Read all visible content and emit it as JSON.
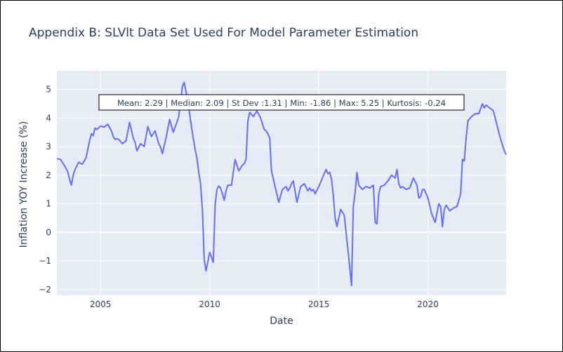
{
  "chart_data": {
    "type": "line",
    "title": "Appendix B: SLVlt Data Set Used For Model Parameter Estimation",
    "xlabel": "Date",
    "ylabel": "Inflation YOY Increase (%)",
    "xlim": [
      "2003-01",
      "2023-08"
    ],
    "ylim": [
      -2.2,
      5.65
    ],
    "x_ticks": [
      {
        "value": "2005-01",
        "label": "2005"
      },
      {
        "value": "2010-01",
        "label": "2010"
      },
      {
        "value": "2015-01",
        "label": "2015"
      },
      {
        "value": "2020-01",
        "label": "2020"
      }
    ],
    "y_ticks": [
      {
        "value": -2,
        "label": "−2"
      },
      {
        "value": -1,
        "label": "−1"
      },
      {
        "value": 0,
        "label": "0"
      },
      {
        "value": 1,
        "label": "1"
      },
      {
        "value": 2,
        "label": "2"
      },
      {
        "value": 3,
        "label": "3"
      },
      {
        "value": 4,
        "label": "4"
      },
      {
        "value": 5,
        "label": "5"
      }
    ],
    "grid": true,
    "line_color": "#636efa",
    "plot_bgcolor": "#e5ecf6",
    "annotation": "Mean: 2.29 | Median: 2.09 | St Dev :1.31 | Min: -1.86 | Max: 5.25 | Kurtosis: -0.24",
    "series": [
      {
        "x": [
          "2003-01",
          "2003-03",
          "2003-05",
          "2003-07",
          "2003-08",
          "2003-09",
          "2003-10",
          "2003-11",
          "2004-01",
          "2004-03",
          "2004-05",
          "2004-07",
          "2004-08",
          "2004-09",
          "2004-10",
          "2004-11",
          "2005-01",
          "2005-03",
          "2005-05",
          "2005-07",
          "2005-08",
          "2005-09",
          "2005-10",
          "2005-11",
          "2006-01",
          "2006-03",
          "2006-05",
          "2006-07",
          "2006-08",
          "2006-09",
          "2006-11",
          "2007-01",
          "2007-03",
          "2007-05",
          "2007-07",
          "2007-09",
          "2007-10",
          "2007-11",
          "2008-01",
          "2008-03",
          "2008-05",
          "2008-07",
          "2008-08",
          "2008-09",
          "2008-10",
          "2008-11",
          "2009-01",
          "2009-03",
          "2009-04",
          "2009-05",
          "2009-06",
          "2009-07",
          "2009-08",
          "2009-09",
          "2009-10",
          "2009-11",
          "2010-01",
          "2010-03",
          "2010-04",
          "2010-05",
          "2010-06",
          "2010-07",
          "2010-08",
          "2010-09",
          "2010-10",
          "2010-11",
          "2011-01",
          "2011-03",
          "2011-05",
          "2011-07",
          "2011-08",
          "2011-09",
          "2011-10",
          "2011-11",
          "2012-01",
          "2012-03",
          "2012-05",
          "2012-07",
          "2012-08",
          "2012-09",
          "2012-10",
          "2012-11",
          "2013-01",
          "2013-03",
          "2013-05",
          "2013-07",
          "2013-08",
          "2013-09",
          "2013-10",
          "2013-11",
          "2014-01",
          "2014-03",
          "2014-05",
          "2014-07",
          "2014-08",
          "2014-09",
          "2014-10",
          "2014-11",
          "2015-01",
          "2015-03",
          "2015-05",
          "2015-06",
          "2015-07",
          "2015-08",
          "2015-09",
          "2015-10",
          "2015-11",
          "2016-01",
          "2016-03",
          "2016-05",
          "2016-07",
          "2016-08",
          "2016-09",
          "2016-10",
          "2016-11",
          "2017-01",
          "2017-03",
          "2017-05",
          "2017-07",
          "2017-08",
          "2017-09",
          "2017-10",
          "2017-11",
          "2018-01",
          "2018-03",
          "2018-05",
          "2018-07",
          "2018-08",
          "2018-09",
          "2018-10",
          "2018-11",
          "2019-01",
          "2019-03",
          "2019-05",
          "2019-07",
          "2019-08",
          "2019-09",
          "2019-10",
          "2019-11",
          "2020-01",
          "2020-03",
          "2020-05",
          "2020-07",
          "2020-08",
          "2020-09",
          "2020-10",
          "2020-11",
          "2021-01",
          "2021-03",
          "2021-05",
          "2021-07",
          "2021-08",
          "2021-09",
          "2021-10",
          "2021-11",
          "2022-01",
          "2022-03",
          "2022-05",
          "2022-07",
          "2022-08",
          "2022-09",
          "2022-10",
          "2022-11",
          "2023-01",
          "2023-03",
          "2023-05",
          "2023-07",
          "2023-08"
        ],
        "y": [
          2.58,
          2.55,
          2.35,
          2.12,
          1.85,
          1.65,
          2.0,
          2.2,
          2.45,
          2.38,
          2.6,
          3.2,
          3.45,
          3.38,
          3.65,
          3.6,
          3.72,
          3.68,
          3.78,
          3.55,
          3.35,
          3.25,
          3.28,
          3.25,
          3.1,
          3.2,
          3.85,
          3.3,
          3.15,
          2.85,
          3.1,
          3.0,
          3.7,
          3.35,
          3.55,
          3.1,
          2.98,
          2.75,
          3.3,
          3.95,
          3.5,
          3.85,
          4.05,
          4.55,
          5.1,
          5.25,
          4.6,
          3.7,
          3.3,
          2.9,
          2.6,
          2.1,
          1.7,
          0.8,
          -0.95,
          -1.35,
          -0.7,
          -1.05,
          0.95,
          1.5,
          1.62,
          1.55,
          1.35,
          1.12,
          1.45,
          1.65,
          1.65,
          2.55,
          2.15,
          2.35,
          2.4,
          2.55,
          3.9,
          4.2,
          4.05,
          4.25,
          4.0,
          3.6,
          3.55,
          3.45,
          3.3,
          2.15,
          1.6,
          1.05,
          1.5,
          1.6,
          1.45,
          1.55,
          1.7,
          1.8,
          1.05,
          1.6,
          1.7,
          1.45,
          1.55,
          1.45,
          1.5,
          1.35,
          1.6,
          1.9,
          2.2,
          2.05,
          2.1,
          1.85,
          1.3,
          0.5,
          0.2,
          0.8,
          0.6,
          -0.6,
          -1.86,
          0.9,
          1.4,
          2.1,
          1.65,
          1.5,
          1.6,
          1.55,
          1.65,
          0.35,
          0.3,
          1.35,
          1.6,
          1.65,
          1.8,
          2.0,
          1.9,
          2.2,
          1.7,
          1.55,
          1.6,
          1.5,
          1.55,
          1.9,
          1.65,
          1.2,
          1.25,
          1.5,
          1.5,
          1.2,
          0.65,
          0.35,
          1.0,
          0.9,
          0.2,
          0.8,
          0.95,
          0.75,
          0.85,
          0.9,
          1.35,
          2.55,
          2.5,
          3.3,
          3.9,
          4.05,
          4.15,
          4.15,
          4.5,
          4.35,
          4.45,
          4.4,
          4.35,
          4.25,
          3.75,
          3.25,
          2.85,
          2.72
        ]
      }
    ]
  }
}
